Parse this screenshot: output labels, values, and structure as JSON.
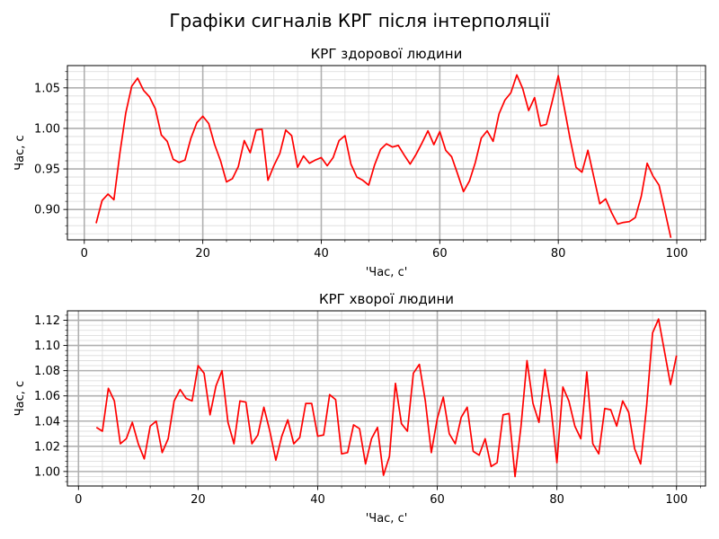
{
  "figure": {
    "suptitle": "Графіки сигналів КРГ після інтерполяції"
  },
  "colors": {
    "line": "#ff0000",
    "major_grid": "#b0b0b0",
    "minor_grid": "#d9d9d9",
    "axes": "#000000"
  },
  "chart_data": [
    {
      "type": "line",
      "title": "КРГ здорової людини",
      "xlabel": "'Час, с'",
      "ylabel": "Час, с",
      "xlim": [
        -2.85,
        104.85
      ],
      "ylim": [
        0.8625,
        1.0775
      ],
      "grid": true,
      "xticks": [
        0,
        20,
        40,
        60,
        80,
        100
      ],
      "xtick_labels": [
        "0",
        "20",
        "40",
        "60",
        "80",
        "100"
      ],
      "yticks": [
        0.9,
        0.95,
        1.0,
        1.05
      ],
      "ytick_labels": [
        "0.90",
        "0.95",
        "1.00",
        "1.05"
      ],
      "series": [
        {
          "x": [
            2,
            3,
            4,
            5,
            6,
            7,
            8,
            9,
            10,
            11,
            12,
            13,
            14,
            15,
            16,
            17,
            18,
            19,
            20,
            21,
            22,
            23,
            24,
            25,
            26,
            27,
            28,
            29,
            30,
            31,
            32,
            33,
            34,
            35,
            36,
            37,
            38,
            39,
            40,
            41,
            42,
            43,
            44,
            45,
            46,
            47,
            48,
            49,
            50,
            51,
            52,
            53,
            54,
            55,
            56,
            57,
            58,
            59,
            60,
            61,
            62,
            63,
            64,
            65,
            66,
            67,
            68,
            69,
            70,
            71,
            72,
            73,
            74,
            75,
            76,
            77,
            78,
            79,
            80,
            81,
            82,
            83,
            84,
            85,
            86,
            87,
            88,
            89,
            90,
            91,
            92,
            93,
            94,
            95,
            96,
            97,
            98,
            99
          ],
          "y": [
            0.883,
            0.911,
            0.919,
            0.912,
            0.969,
            1.019,
            1.052,
            1.062,
            1.047,
            1.039,
            1.024,
            0.992,
            0.984,
            0.962,
            0.958,
            0.961,
            0.988,
            1.007,
            1.015,
            1.006,
            0.98,
            0.96,
            0.934,
            0.938,
            0.953,
            0.985,
            0.97,
            0.998,
            0.999,
            0.936,
            0.954,
            0.969,
            0.998,
            0.991,
            0.952,
            0.966,
            0.957,
            0.961,
            0.964,
            0.954,
            0.964,
            0.985,
            0.991,
            0.956,
            0.94,
            0.936,
            0.93,
            0.955,
            0.974,
            0.981,
            0.977,
            0.979,
            0.967,
            0.956,
            0.968,
            0.982,
            0.997,
            0.98,
            0.996,
            0.973,
            0.965,
            0.944,
            0.922,
            0.935,
            0.958,
            0.988,
            0.997,
            0.984,
            1.018,
            1.035,
            1.044,
            1.066,
            1.049,
            1.022,
            1.038,
            1.003,
            1.005,
            1.034,
            1.065,
            1.026,
            0.987,
            0.952,
            0.946,
            0.973,
            0.94,
            0.907,
            0.913,
            0.896,
            0.882,
            0.884,
            0.885,
            0.89,
            0.916,
            0.957,
            0.941,
            0.93,
            0.898,
            0.865
          ]
        }
      ]
    },
    {
      "type": "line",
      "title": "КРГ хворої людини",
      "xlabel": "'Час, с'",
      "ylabel": "Час, с",
      "xlim": [
        -1.85,
        104.85
      ],
      "ylim": [
        0.9885,
        1.1275
      ],
      "grid": true,
      "xticks": [
        0,
        20,
        40,
        60,
        80,
        100
      ],
      "xtick_labels": [
        "0",
        "20",
        "40",
        "60",
        "80",
        "100"
      ],
      "yticks": [
        1.0,
        1.02,
        1.04,
        1.06,
        1.08,
        1.1,
        1.12
      ],
      "ytick_labels": [
        "1.00",
        "1.02",
        "1.04",
        "1.06",
        "1.08",
        "1.10",
        "1.12"
      ],
      "series": [
        {
          "x": [
            3,
            4,
            5,
            6,
            7,
            8,
            9,
            10,
            11,
            12,
            13,
            14,
            15,
            16,
            17,
            18,
            19,
            20,
            21,
            22,
            23,
            24,
            25,
            26,
            27,
            28,
            29,
            30,
            31,
            32,
            33,
            34,
            35,
            36,
            37,
            38,
            39,
            40,
            41,
            42,
            43,
            44,
            45,
            46,
            47,
            48,
            49,
            50,
            51,
            52,
            53,
            54,
            55,
            56,
            57,
            58,
            59,
            60,
            61,
            62,
            63,
            64,
            65,
            66,
            67,
            68,
            69,
            70,
            71,
            72,
            73,
            74,
            75,
            76,
            77,
            78,
            79,
            80,
            81,
            82,
            83,
            84,
            85,
            86,
            87,
            88,
            89,
            90,
            91,
            92,
            93,
            94,
            95,
            96,
            97,
            98,
            99,
            100
          ],
          "y": [
            1.035,
            1.032,
            1.066,
            1.056,
            1.022,
            1.026,
            1.039,
            1.022,
            1.01,
            1.036,
            1.04,
            1.015,
            1.026,
            1.056,
            1.065,
            1.058,
            1.056,
            1.084,
            1.078,
            1.045,
            1.068,
            1.08,
            1.039,
            1.022,
            1.056,
            1.055,
            1.022,
            1.029,
            1.051,
            1.032,
            1.009,
            1.028,
            1.041,
            1.022,
            1.027,
            1.054,
            1.054,
            1.028,
            1.029,
            1.061,
            1.057,
            1.014,
            1.015,
            1.037,
            1.034,
            1.006,
            1.026,
            1.035,
            0.997,
            1.012,
            1.07,
            1.038,
            1.032,
            1.078,
            1.085,
            1.056,
            1.015,
            1.042,
            1.059,
            1.03,
            1.022,
            1.043,
            1.051,
            1.016,
            1.013,
            1.026,
            1.004,
            1.007,
            1.045,
            1.046,
            0.996,
            1.036,
            1.088,
            1.054,
            1.039,
            1.081,
            1.051,
            1.007,
            1.067,
            1.056,
            1.036,
            1.026,
            1.079,
            1.022,
            1.014,
            1.05,
            1.049,
            1.036,
            1.056,
            1.047,
            1.018,
            1.006,
            1.052,
            1.11,
            1.121,
            1.095,
            1.069,
            1.092
          ]
        }
      ]
    }
  ]
}
